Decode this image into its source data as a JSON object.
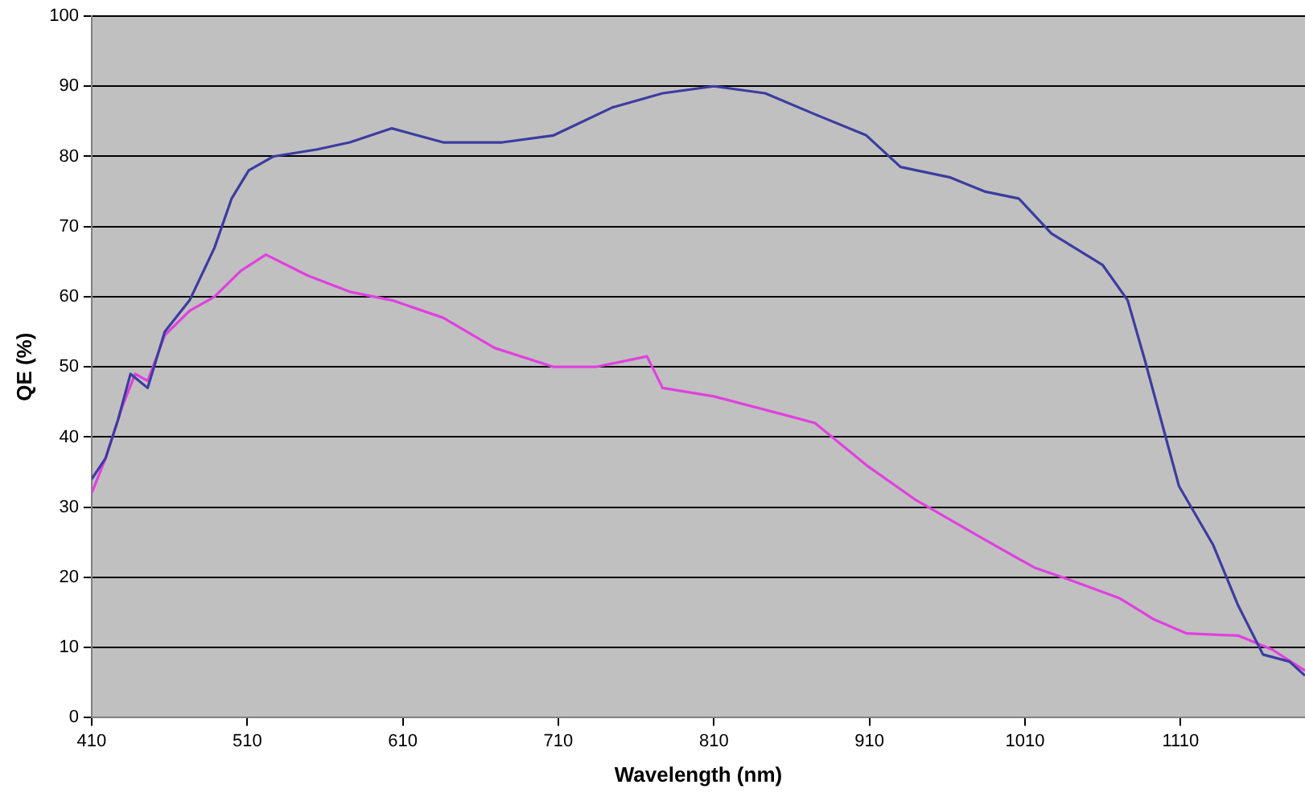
{
  "chart_data": {
    "type": "line",
    "xlabel": "Wavelength (nm)",
    "ylabel": "QE (%)",
    "xlim": [
      410,
      1190
    ],
    "ylim": [
      0,
      100
    ],
    "xticks": [
      410,
      510,
      610,
      710,
      810,
      910,
      1010,
      1110
    ],
    "yticks": [
      0,
      10,
      20,
      30,
      40,
      50,
      60,
      70,
      80,
      90,
      100
    ],
    "grid": "y",
    "legend": false,
    "marker": "none",
    "line_style": "solid",
    "series": [
      {
        "color": "#3c3ca0",
        "x": [
          410,
          419,
          427,
          435,
          446,
          457,
          473,
          489,
          500,
          511,
          527,
          555,
          576,
          603,
          636,
          674,
          707,
          745,
          777,
          810,
          843,
          875,
          908,
          930,
          962,
          984,
          1006,
          1027,
          1060,
          1076,
          1087,
          1098,
          1109,
          1131,
          1147,
          1163,
          1180,
          1190
        ],
        "values": [
          34,
          37,
          42.5,
          49,
          47,
          55,
          59.5,
          67,
          74,
          78,
          80,
          81,
          82,
          84,
          82,
          82,
          83,
          87,
          89,
          90,
          89,
          86,
          83,
          78.5,
          77,
          75,
          74,
          69,
          64.5,
          59.5,
          51,
          42,
          33,
          24.6,
          16,
          9,
          8,
          6
        ]
      },
      {
        "color": "#e040e0",
        "x": [
          410,
          419,
          430,
          438,
          446,
          457,
          473,
          489,
          506,
          522,
          549,
          576,
          603,
          636,
          669,
          707,
          734,
          767,
          777,
          810,
          853,
          875,
          908,
          940,
          984,
          1016,
          1038,
          1071,
          1093,
          1114,
          1147,
          1169,
          1190
        ],
        "values": [
          32,
          37,
          44.5,
          49,
          48,
          54.5,
          58,
          60,
          63.7,
          66,
          63,
          60.7,
          59.5,
          57,
          52.7,
          50,
          50,
          51.5,
          47,
          45.8,
          43.3,
          42,
          36,
          31,
          25.4,
          21.4,
          19.7,
          17,
          14,
          12,
          11.7,
          9.7,
          6.7
        ]
      }
    ]
  }
}
